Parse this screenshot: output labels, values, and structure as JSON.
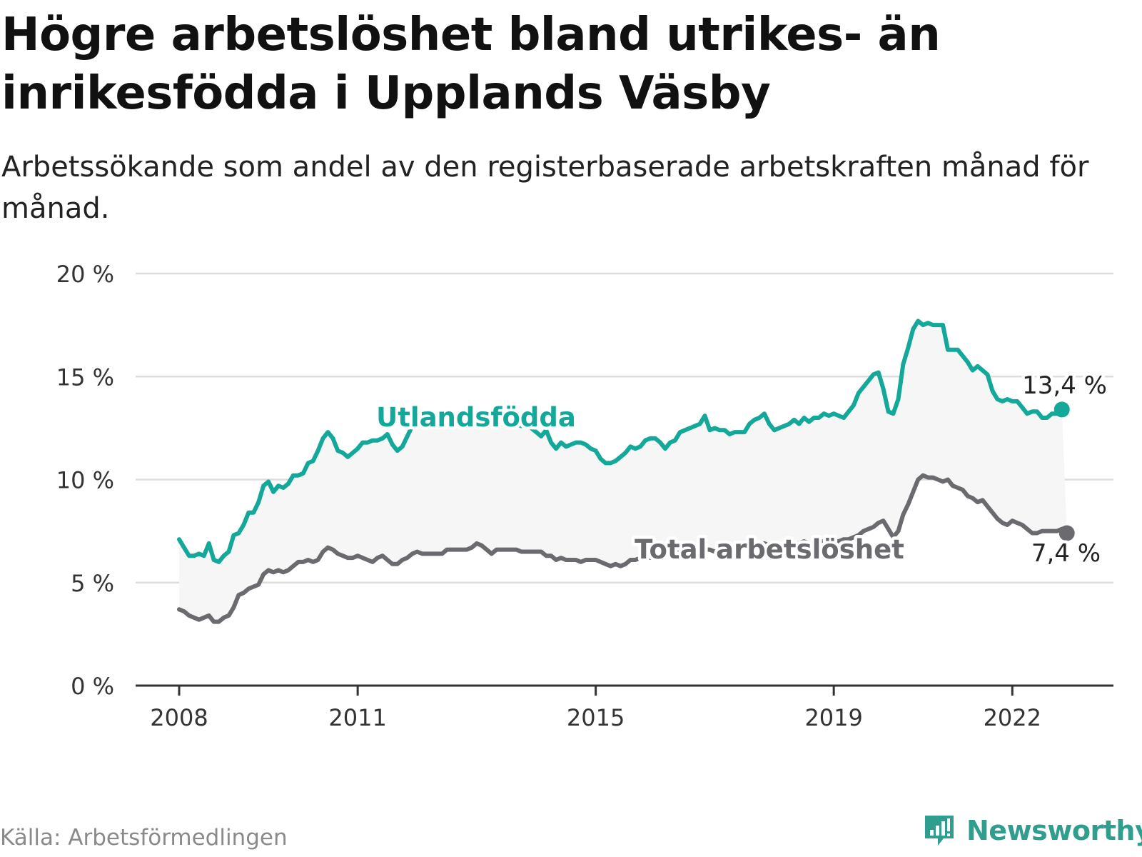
{
  "header": {
    "title": "Högre arbetslöshet bland utrikes- än inrikesfödda i Upplands Väsby",
    "subtitle": "Arbetssökande som andel av den registerbaserade arbetskraften månad för månad."
  },
  "footer": {
    "source": "Källa: Arbetsförmedlingen",
    "brand": "Newsworthy"
  },
  "colors": {
    "foreign_born": "#14a89a",
    "total": "#6b6b6f",
    "band": "#f6f6f6",
    "grid": "#dddddd",
    "axis": "#333333",
    "brand": "#2f9e8f"
  },
  "chart_data": {
    "type": "line",
    "title": "Högre arbetslöshet bland utrikes- än inrikesfödda i Upplands Väsby",
    "xlabel": "",
    "ylabel": "",
    "x_range": [
      2008.0,
      2022.92
    ],
    "ylim": [
      0,
      20
    ],
    "y_ticks": [
      0,
      5,
      10,
      15,
      20
    ],
    "y_tick_labels": [
      "0 %",
      "5 %",
      "10 %",
      "15 %",
      "20 %"
    ],
    "x_ticks": [
      2008,
      2011,
      2015,
      2019,
      2022
    ],
    "x_tick_labels": [
      "2008",
      "2011",
      "2015",
      "2019",
      "2022"
    ],
    "grid": true,
    "series": [
      {
        "name": "Utlandsfödda",
        "label": "Utlandsfödda",
        "end_label": "13,4 %",
        "x_start": 2008.0,
        "step": 0.083333,
        "values": [
          7.1,
          6.7,
          6.3,
          6.3,
          6.4,
          6.3,
          6.9,
          6.1,
          6.0,
          6.3,
          6.5,
          7.3,
          7.4,
          7.8,
          8.4,
          8.4,
          8.9,
          9.7,
          9.9,
          9.4,
          9.7,
          9.6,
          9.8,
          10.2,
          10.2,
          10.3,
          10.8,
          10.9,
          11.4,
          12.0,
          12.3,
          12.0,
          11.4,
          11.3,
          11.1,
          11.3,
          11.5,
          11.8,
          11.8,
          11.9,
          11.9,
          12.0,
          12.2,
          11.7,
          11.4,
          11.6,
          12.1,
          12.6,
          12.8,
          12.9,
          13.0,
          13.0,
          12.9,
          13.0,
          13.0,
          13.1,
          13.1,
          13.0,
          13.0,
          13.0,
          13.1,
          13.1,
          13.0,
          13.0,
          13.0,
          12.8,
          12.7,
          12.8,
          12.7,
          12.6,
          12.6,
          12.5,
          12.3,
          12.1,
          12.4,
          11.8,
          11.5,
          11.8,
          11.6,
          11.7,
          11.8,
          11.8,
          11.7,
          11.5,
          11.4,
          11.0,
          10.8,
          10.8,
          10.9,
          11.1,
          11.3,
          11.6,
          11.5,
          11.6,
          11.9,
          12.0,
          12.0,
          11.8,
          11.5,
          11.8,
          11.9,
          12.3,
          12.4,
          12.5,
          12.6,
          12.7,
          13.1,
          12.4,
          12.5,
          12.4,
          12.4,
          12.2,
          12.3,
          12.3,
          12.3,
          12.7,
          12.9,
          13.0,
          13.2,
          12.7,
          12.4,
          12.5,
          12.6,
          12.7,
          12.9,
          12.7,
          13.0,
          12.8,
          13.0,
          13.0,
          13.2,
          13.1,
          13.2,
          13.1,
          13.0,
          13.3,
          13.6,
          14.2,
          14.5,
          14.8,
          15.1,
          15.2,
          14.4,
          13.3,
          13.2,
          13.9,
          15.6,
          16.4,
          17.3,
          17.7,
          17.5,
          17.6,
          17.5,
          17.5,
          17.5,
          16.3,
          16.3,
          16.3,
          16.0,
          15.7,
          15.3,
          15.5,
          15.3,
          15.1,
          14.3,
          13.9,
          13.8,
          13.9,
          13.8,
          13.8,
          13.5,
          13.2,
          13.3,
          13.3,
          13.0,
          13.0,
          13.2,
          13.2,
          13.4
        ]
      },
      {
        "name": "Total arbetslöshet",
        "label": "Total arbetslöshet",
        "end_label": "7,4 %",
        "x_start": 2008.0,
        "step": 0.083333,
        "values": [
          3.7,
          3.6,
          3.4,
          3.3,
          3.2,
          3.3,
          3.4,
          3.1,
          3.1,
          3.3,
          3.4,
          3.8,
          4.4,
          4.5,
          4.7,
          4.8,
          4.9,
          5.4,
          5.6,
          5.5,
          5.6,
          5.5,
          5.6,
          5.8,
          6.0,
          6.0,
          6.1,
          6.0,
          6.1,
          6.5,
          6.7,
          6.6,
          6.4,
          6.3,
          6.2,
          6.2,
          6.3,
          6.2,
          6.1,
          6.0,
          6.2,
          6.3,
          6.1,
          5.9,
          5.9,
          6.1,
          6.2,
          6.4,
          6.5,
          6.4,
          6.4,
          6.4,
          6.4,
          6.4,
          6.6,
          6.6,
          6.6,
          6.6,
          6.6,
          6.7,
          6.9,
          6.8,
          6.6,
          6.4,
          6.6,
          6.6,
          6.6,
          6.6,
          6.6,
          6.5,
          6.5,
          6.5,
          6.5,
          6.5,
          6.3,
          6.3,
          6.1,
          6.2,
          6.1,
          6.1,
          6.1,
          6.0,
          6.1,
          6.1,
          6.1,
          6.0,
          5.9,
          5.8,
          5.9,
          5.8,
          5.9,
          6.1,
          6.1,
          6.2,
          6.3,
          6.2,
          6.3,
          6.3,
          6.4,
          6.4,
          6.4,
          6.5,
          6.5,
          6.5,
          6.5,
          6.6,
          6.6,
          6.6,
          6.5,
          6.6,
          6.6,
          6.6,
          6.6,
          6.7,
          6.7,
          6.8,
          6.8,
          6.8,
          6.9,
          6.8,
          6.8,
          6.8,
          6.8,
          6.9,
          6.9,
          6.9,
          7.0,
          6.9,
          6.9,
          7.0,
          7.0,
          7.0,
          7.0,
          7.0,
          7.1,
          7.1,
          7.2,
          7.3,
          7.5,
          7.6,
          7.7,
          7.9,
          8.0,
          7.6,
          7.2,
          7.5,
          8.3,
          8.8,
          9.4,
          10.0,
          10.2,
          10.1,
          10.1,
          10.0,
          9.9,
          10.0,
          9.7,
          9.6,
          9.5,
          9.2,
          9.1,
          8.9,
          9.0,
          8.7,
          8.4,
          8.1,
          7.9,
          7.8,
          8.0,
          7.9,
          7.8,
          7.6,
          7.4,
          7.4,
          7.5,
          7.5,
          7.5,
          7.5,
          7.6,
          7.4
        ]
      }
    ]
  }
}
